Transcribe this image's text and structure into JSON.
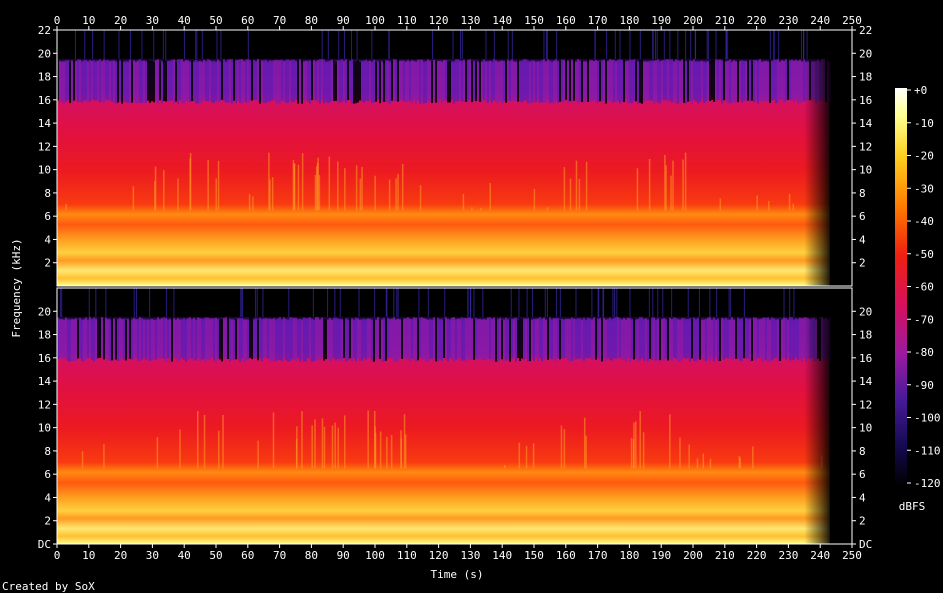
{
  "chart_data": {
    "type": "heatmap",
    "title": "",
    "xlabel": "Time (s)",
    "ylabel": "Frequency (kHz)",
    "xlim": [
      0,
      250
    ],
    "ylim": [
      0,
      22
    ],
    "x_ticks": [
      "0",
      "10",
      "20",
      "30",
      "40",
      "50",
      "60",
      "70",
      "80",
      "90",
      "100",
      "110",
      "120",
      "130",
      "140",
      "150",
      "160",
      "170",
      "180",
      "190",
      "200",
      "210",
      "220",
      "230",
      "240",
      "250"
    ],
    "y_ticks_top": [
      "2",
      "4",
      "6",
      "8",
      "10",
      "12",
      "14",
      "16",
      "18",
      "20",
      "22"
    ],
    "y_ticks_bottom": [
      "DC",
      "2",
      "4",
      "6",
      "8",
      "10",
      "12",
      "14",
      "16",
      "18",
      "20"
    ],
    "colorbar": {
      "label": "dBFS",
      "ticks": [
        "+0",
        "-10",
        "-20",
        "-30",
        "-40",
        "-50",
        "-60",
        "-70",
        "-80",
        "-90",
        "-100",
        "-110",
        "-120"
      ],
      "range": [
        -120,
        0
      ]
    },
    "channels": 2,
    "content_end_s": 243,
    "lowpass_cutoff_khz": 19.5,
    "footer": "Created by SoX",
    "colors": {
      "background": "#000000",
      "floor": "#1a0a5a",
      "violet": "#6a1ab0",
      "magenta": "#c81070",
      "red": "#e81020",
      "orange": "#ff7a00",
      "yellow": "#ffd23a",
      "white": "#ffffd0"
    }
  }
}
